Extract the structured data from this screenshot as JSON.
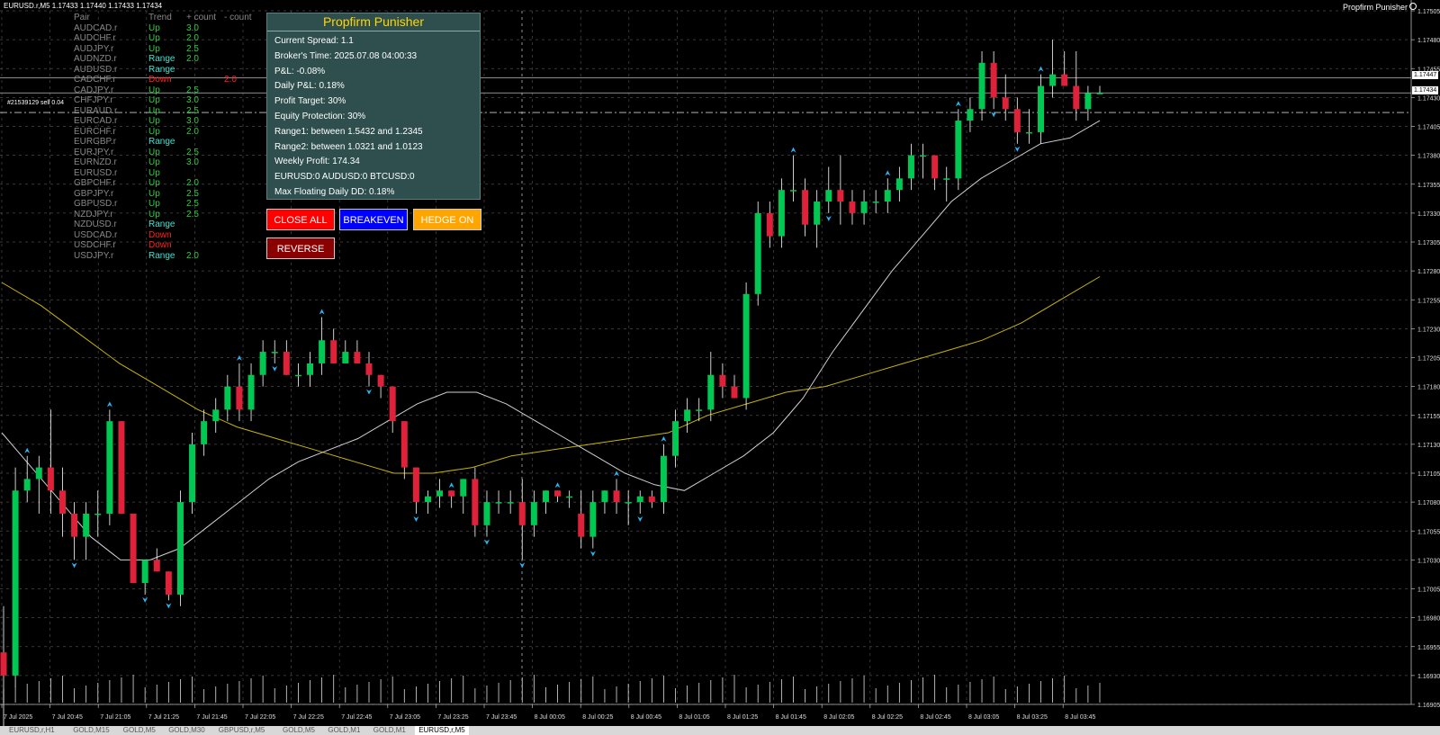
{
  "top_info": "EURUSD.r,M5  1.17433 1.17440 1.17433 1.17434",
  "ea_name": "Propfirm Punisher",
  "order_label": "#21539129 sell 0.04",
  "pair_headers": [
    "Pair",
    "Trend",
    "+ count",
    "- count"
  ],
  "pairs": [
    {
      "pair": "AUDCAD.r",
      "trend": "Up",
      "plus": "3.0",
      "minus": ""
    },
    {
      "pair": "AUDCHF.r",
      "trend": "Up",
      "plus": "2.0",
      "minus": ""
    },
    {
      "pair": "AUDJPY.r",
      "trend": "Up",
      "plus": "2.5",
      "minus": ""
    },
    {
      "pair": "AUDNZD.r",
      "trend": "Range",
      "plus": "2.0",
      "minus": ""
    },
    {
      "pair": "AUDUSD.r",
      "trend": "Range",
      "plus": "",
      "minus": ""
    },
    {
      "pair": "CADCHF.r",
      "trend": "Down",
      "plus": "",
      "minus": "2.0"
    },
    {
      "pair": "CADJPY.r",
      "trend": "Up",
      "plus": "2.5",
      "minus": ""
    },
    {
      "pair": "CHFJPY.r",
      "trend": "Up",
      "plus": "3.0",
      "minus": ""
    },
    {
      "pair": "EURAUD.r",
      "trend": "Up",
      "plus": "2.5",
      "minus": ""
    },
    {
      "pair": "EURCAD.r",
      "trend": "Up",
      "plus": "3.0",
      "minus": ""
    },
    {
      "pair": "EURCHF.r",
      "trend": "Up",
      "plus": "2.0",
      "minus": ""
    },
    {
      "pair": "EURGBP.r",
      "trend": "Range",
      "plus": "",
      "minus": ""
    },
    {
      "pair": "EURJPY.r",
      "trend": "Up",
      "plus": "2.5",
      "minus": ""
    },
    {
      "pair": "EURNZD.r",
      "trend": "Up",
      "plus": "3.0",
      "minus": ""
    },
    {
      "pair": "EURUSD.r",
      "trend": "Up",
      "plus": "",
      "minus": ""
    },
    {
      "pair": "GBPCHF.r",
      "trend": "Up",
      "plus": "2.0",
      "minus": ""
    },
    {
      "pair": "GBPJPY.r",
      "trend": "Up",
      "plus": "2.5",
      "minus": ""
    },
    {
      "pair": "GBPUSD.r",
      "trend": "Up",
      "plus": "2.5",
      "minus": ""
    },
    {
      "pair": "NZDJPY.r",
      "trend": "Up",
      "plus": "2.5",
      "minus": ""
    },
    {
      "pair": "NZDUSD.r",
      "trend": "Range",
      "plus": "",
      "minus": ""
    },
    {
      "pair": "USDCAD.r",
      "trend": "Down",
      "plus": "",
      "minus": ""
    },
    {
      "pair": "USDCHF.r",
      "trend": "Down",
      "plus": "",
      "minus": ""
    },
    {
      "pair": "USDJPY.r",
      "trend": "Range",
      "plus": "2.0",
      "minus": ""
    }
  ],
  "trend_colors": {
    "Up": "#2ecc40",
    "Range": "#40e0d0",
    "Down": "#ff2020"
  },
  "panel": {
    "title": "Propfirm Punisher",
    "lines": [
      "Current Spread: 1.1",
      "Broker's Time: 2025.07.08 04:00:33",
      "P&L: -0.08%",
      "Daily P&L: 0.18%",
      "Profit Target: 30%",
      "Equity Protection: 30%",
      "Range1: between 1.5432 and 1.2345",
      "Range2: between 1.0321 and 1.0123",
      "Weekly Profit: 174.34",
      "EURUSD:0 AUDUSD:0 BTCUSD:0",
      "Max Floating Daily DD: 0.18%"
    ]
  },
  "buttons": {
    "close_all": "CLOSE ALL",
    "breakeven": "BREAKEVEN",
    "hedge_on": "HEDGE ON",
    "reverse": "REVERSE"
  },
  "colors": {
    "bull": "#00c853",
    "bear": "#e0213a",
    "grid": "#4a4a4a",
    "ma_fast": "#cfcfcf",
    "ma_slow": "#c8b400",
    "btn_close": "#ff0000",
    "btn_breakeven": "#0000ff",
    "btn_hedge": "#ffa500",
    "btn_reverse": "#8b0000",
    "arrow": "#29b6f6"
  },
  "price_labels": [
    "1.17505",
    "1.17480",
    "1.17455",
    "1.17430",
    "1.17405",
    "1.17380",
    "1.17355",
    "1.17330",
    "1.17305",
    "1.17280",
    "1.17255",
    "1.17230",
    "1.17205",
    "1.17180",
    "1.17155",
    "1.17130",
    "1.17105",
    "1.17080",
    "1.17055",
    "1.17030",
    "1.17005",
    "1.16980",
    "1.16955",
    "1.16930",
    "1.16905"
  ],
  "price_tags": [
    "1.17447",
    "1.17434"
  ],
  "time_labels": [
    "7 Jul 2025",
    "7 Jul 20:45",
    "7 Jul 21:05",
    "7 Jul 21:25",
    "7 Jul 21:45",
    "7 Jul 22:05",
    "7 Jul 22:25",
    "7 Jul 22:45",
    "7 Jul 23:05",
    "7 Jul 23:25",
    "7 Jul 23:45",
    "8 Jul 00:05",
    "8 Jul 00:25",
    "8 Jul 00:45",
    "8 Jul 01:05",
    "8 Jul 01:25",
    "8 Jul 01:45",
    "8 Jul 02:05",
    "8 Jul 02:25",
    "8 Jul 02:45",
    "8 Jul 03:05",
    "8 Jul 03:25",
    "8 Jul 03:45"
  ],
  "tabs": [
    "EURUSD,r,H1",
    "GOLD,M15",
    "GOLD,M5",
    "GOLD,M30",
    "GBPUSD,r,M5",
    "GOLD,M5",
    "GOLD,M1",
    "GOLD,M1",
    "EURUSD,r,M5"
  ],
  "chart_data": {
    "type": "candlestick",
    "symbol": "EURUSD.r",
    "timeframe": "M5",
    "ylim": [
      1.16905,
      1.17505
    ],
    "candles_ohlc": [
      [
        1.1695,
        1.1699,
        1.1686,
        1.1693
      ],
      [
        1.1693,
        1.1711,
        1.1692,
        1.1709
      ],
      [
        1.1709,
        1.1712,
        1.1708,
        1.171
      ],
      [
        1.171,
        1.1712,
        1.1707,
        1.1711
      ],
      [
        1.1711,
        1.1716,
        1.1707,
        1.1709
      ],
      [
        1.1709,
        1.1711,
        1.1705,
        1.1707
      ],
      [
        1.1707,
        1.1708,
        1.1703,
        1.1705
      ],
      [
        1.1705,
        1.1708,
        1.1703,
        1.1707
      ],
      [
        1.1707,
        1.1709,
        1.1705,
        1.1707
      ],
      [
        1.1707,
        1.1716,
        1.1706,
        1.1715
      ],
      [
        1.1715,
        1.1715,
        1.1707,
        1.1707
      ],
      [
        1.1707,
        1.1707,
        1.1701,
        1.1701
      ],
      [
        1.1701,
        1.1703,
        1.17,
        1.1703
      ],
      [
        1.1703,
        1.1704,
        1.1702,
        1.1702
      ],
      [
        1.1702,
        1.1702,
        1.16995,
        1.17
      ],
      [
        1.17,
        1.1709,
        1.1699,
        1.1708
      ],
      [
        1.1708,
        1.1714,
        1.1707,
        1.1713
      ],
      [
        1.1713,
        1.1716,
        1.1712,
        1.1715
      ],
      [
        1.1715,
        1.1717,
        1.1714,
        1.1716
      ],
      [
        1.1716,
        1.1719,
        1.1715,
        1.1718
      ],
      [
        1.1718,
        1.172,
        1.1715,
        1.1716
      ],
      [
        1.1716,
        1.172,
        1.1715,
        1.1719
      ],
      [
        1.1719,
        1.1722,
        1.1718,
        1.1721
      ],
      [
        1.1721,
        1.1722,
        1.172,
        1.1721
      ],
      [
        1.1721,
        1.1722,
        1.1719,
        1.1719
      ],
      [
        1.1719,
        1.172,
        1.1718,
        1.1719
      ],
      [
        1.1719,
        1.1721,
        1.1718,
        1.172
      ],
      [
        1.172,
        1.1724,
        1.1719,
        1.1722
      ],
      [
        1.1722,
        1.1723,
        1.172,
        1.172
      ],
      [
        1.172,
        1.1722,
        1.172,
        1.1721
      ],
      [
        1.1721,
        1.1722,
        1.172,
        1.172
      ],
      [
        1.172,
        1.1721,
        1.1718,
        1.1719
      ],
      [
        1.1719,
        1.1719,
        1.1717,
        1.1718
      ],
      [
        1.1718,
        1.1718,
        1.1714,
        1.1715
      ],
      [
        1.1715,
        1.1715,
        1.171,
        1.1711
      ],
      [
        1.1711,
        1.1711,
        1.1707,
        1.1708
      ],
      [
        1.1708,
        1.1709,
        1.1707,
        1.17085
      ],
      [
        1.17085,
        1.171,
        1.17075,
        1.1709
      ],
      [
        1.1709,
        1.1709,
        1.17075,
        1.17085
      ],
      [
        1.17085,
        1.171,
        1.1707,
        1.171
      ],
      [
        1.171,
        1.1711,
        1.1705,
        1.1706
      ],
      [
        1.1706,
        1.1709,
        1.1705,
        1.1708
      ],
      [
        1.1708,
        1.1709,
        1.1707,
        1.1708
      ],
      [
        1.1708,
        1.1709,
        1.1707,
        1.1708
      ],
      [
        1.1708,
        1.171,
        1.1703,
        1.1706
      ],
      [
        1.1706,
        1.1709,
        1.1705,
        1.1708
      ],
      [
        1.1708,
        1.1709,
        1.1707,
        1.1709
      ],
      [
        1.1709,
        1.1709,
        1.1708,
        1.17085
      ],
      [
        1.17085,
        1.1709,
        1.17075,
        1.17085
      ],
      [
        1.1707,
        1.1709,
        1.1704,
        1.1705
      ],
      [
        1.1705,
        1.1709,
        1.1704,
        1.1708
      ],
      [
        1.1708,
        1.1709,
        1.1707,
        1.1709
      ],
      [
        1.1709,
        1.171,
        1.1707,
        1.1708
      ],
      [
        1.1708,
        1.1709,
        1.1706,
        1.1708
      ],
      [
        1.1708,
        1.1709,
        1.1707,
        1.17085
      ],
      [
        1.17085,
        1.1709,
        1.17075,
        1.1708
      ],
      [
        1.1708,
        1.1713,
        1.1707,
        1.1712
      ],
      [
        1.1712,
        1.1716,
        1.1711,
        1.1715
      ],
      [
        1.1715,
        1.1717,
        1.1714,
        1.1716
      ],
      [
        1.1716,
        1.1717,
        1.1715,
        1.1716
      ],
      [
        1.1716,
        1.1721,
        1.1715,
        1.1719
      ],
      [
        1.1719,
        1.172,
        1.1717,
        1.1718
      ],
      [
        1.1718,
        1.1719,
        1.1717,
        1.1717
      ],
      [
        1.1717,
        1.1727,
        1.1716,
        1.1726
      ],
      [
        1.1726,
        1.1734,
        1.1725,
        1.1733
      ],
      [
        1.1733,
        1.1734,
        1.173,
        1.1731
      ],
      [
        1.1731,
        1.1736,
        1.173,
        1.1735
      ],
      [
        1.1735,
        1.1738,
        1.1734,
        1.1735
      ],
      [
        1.1735,
        1.1736,
        1.1731,
        1.1732
      ],
      [
        1.1732,
        1.1735,
        1.173,
        1.1734
      ],
      [
        1.1734,
        1.1737,
        1.1733,
        1.1735
      ],
      [
        1.1735,
        1.1738,
        1.1732,
        1.1734
      ],
      [
        1.1734,
        1.1735,
        1.1732,
        1.1733
      ],
      [
        1.1733,
        1.1735,
        1.1732,
        1.1734
      ],
      [
        1.1734,
        1.1735,
        1.1733,
        1.1734
      ],
      [
        1.1734,
        1.1736,
        1.1733,
        1.1735
      ],
      [
        1.1735,
        1.1737,
        1.1734,
        1.1736
      ],
      [
        1.1736,
        1.1739,
        1.1735,
        1.1738
      ],
      [
        1.1738,
        1.1739,
        1.1736,
        1.1738
      ],
      [
        1.1738,
        1.1738,
        1.1735,
        1.1736
      ],
      [
        1.1736,
        1.1737,
        1.1734,
        1.1736
      ],
      [
        1.1736,
        1.1742,
        1.1735,
        1.1741
      ],
      [
        1.1741,
        1.1743,
        1.174,
        1.1742
      ],
      [
        1.1742,
        1.1747,
        1.1741,
        1.1746
      ],
      [
        1.1746,
        1.1747,
        1.1742,
        1.1743
      ],
      [
        1.1743,
        1.1745,
        1.1741,
        1.1742
      ],
      [
        1.1742,
        1.1743,
        1.1739,
        1.174
      ],
      [
        1.174,
        1.1742,
        1.1739,
        1.174
      ],
      [
        1.174,
        1.1745,
        1.1739,
        1.1744
      ],
      [
        1.1744,
        1.1748,
        1.1743,
        1.1745
      ],
      [
        1.1745,
        1.1747,
        1.1744,
        1.1744
      ],
      [
        1.1744,
        1.1747,
        1.1741,
        1.1742
      ],
      [
        1.1742,
        1.1744,
        1.1741,
        1.17434
      ],
      [
        1.17433,
        1.1744,
        1.17433,
        1.17434
      ]
    ],
    "ma_fast": [
      1.1714,
      1.1711,
      1.1708,
      1.1705,
      1.1703,
      1.1703,
      1.1704,
      1.1706,
      1.1708,
      1.171,
      1.17115,
      1.17125,
      1.17135,
      1.1715,
      1.17165,
      1.17175,
      1.17175,
      1.17165,
      1.1715,
      1.17135,
      1.1712,
      1.17105,
      1.17095,
      1.1709,
      1.17105,
      1.1712,
      1.1714,
      1.1717,
      1.1721,
      1.17245,
      1.1728,
      1.1731,
      1.1734,
      1.1736,
      1.17375,
      1.1739,
      1.17395,
      1.1741
    ],
    "ma_slow": [
      1.1727,
      1.1725,
      1.17225,
      1.172,
      1.1718,
      1.1716,
      1.17145,
      1.17135,
      1.17125,
      1.17115,
      1.17105,
      1.17105,
      1.1711,
      1.1712,
      1.17125,
      1.1713,
      1.17135,
      1.1714,
      1.17155,
      1.17165,
      1.17175,
      1.1718,
      1.1719,
      1.172,
      1.1721,
      1.1722,
      1.17235,
      1.17255,
      1.17275
    ]
  }
}
